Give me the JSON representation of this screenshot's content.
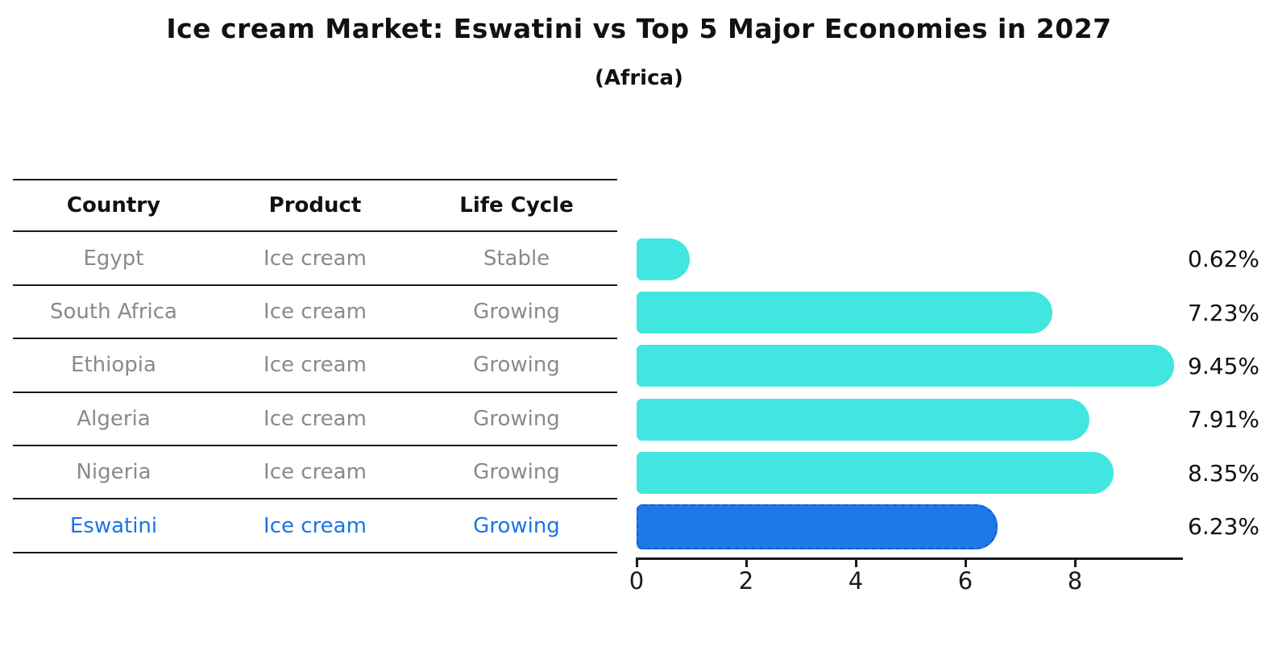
{
  "header": {
    "title": "Ice cream Market: Eswatini vs Top 5 Major Economies in 2027",
    "subtitle": "(Africa)"
  },
  "table": {
    "columns": [
      "Country",
      "Product",
      "Life Cycle"
    ],
    "rows": [
      {
        "country": "Egypt",
        "product": "Ice cream",
        "life_cycle": "Stable",
        "highlighted": false
      },
      {
        "country": "South Africa",
        "product": "Ice cream",
        "life_cycle": "Growing",
        "highlighted": false
      },
      {
        "country": "Ethiopia",
        "product": "Ice cream",
        "life_cycle": "Growing",
        "highlighted": false
      },
      {
        "country": "Algeria",
        "product": "Ice cream",
        "life_cycle": "Growing",
        "highlighted": false
      },
      {
        "country": "Nigeria",
        "product": "Ice cream",
        "life_cycle": "Growing",
        "highlighted": false
      },
      {
        "country": "Eswatini",
        "product": "Ice cream",
        "life_cycle": "Growing",
        "highlighted": true
      }
    ]
  },
  "chart_data": {
    "type": "bar",
    "orientation": "horizontal",
    "title": "Ice cream Market: Eswatini vs Top 5 Major Economies in 2027",
    "subtitle": "(Africa)",
    "categories": [
      "Egypt",
      "South Africa",
      "Ethiopia",
      "Algeria",
      "Nigeria",
      "Eswatini"
    ],
    "values": [
      0.62,
      7.23,
      9.45,
      7.91,
      8.35,
      6.23
    ],
    "value_labels": [
      "0.62%",
      "7.23%",
      "9.45%",
      "7.91%",
      "8.35%",
      "6.23%"
    ],
    "x_ticks": [
      "0",
      "2",
      "4",
      "6",
      "8"
    ],
    "x_tick_values": [
      0,
      2,
      4,
      6,
      8
    ],
    "xlim": [
      0,
      10
    ],
    "grid": false,
    "legend": "none",
    "highlight_index": 5
  },
  "colors": {
    "bar": "#42E6E0",
    "highlight_bar": "#1E78E8",
    "highlight_border": "#1260CF",
    "highlight_text": "#1B74E4",
    "table_text": "#8a8a8a",
    "header_text": "#111111",
    "line": "#1a1a1a"
  }
}
